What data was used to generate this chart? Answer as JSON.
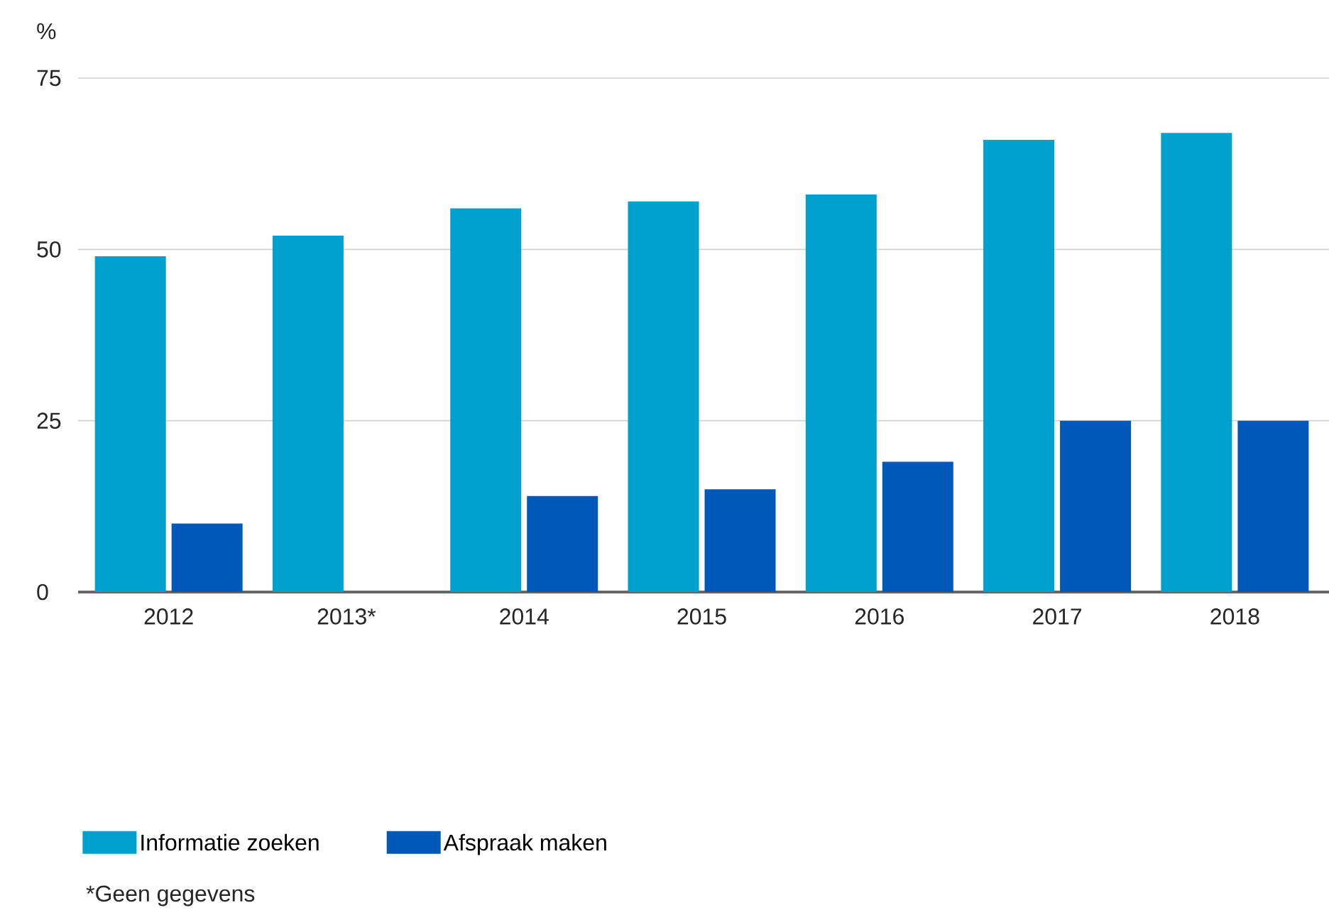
{
  "chart_data": {
    "type": "bar",
    "ylabel": "%",
    "categories": [
      "2012",
      "2013*",
      "2014",
      "2015",
      "2016",
      "2017",
      "2018"
    ],
    "series": [
      {
        "name": "Informatie zoeken",
        "color": "#00a1cd",
        "values": [
          49,
          52,
          56,
          57,
          58,
          66,
          67
        ]
      },
      {
        "name": "Afspraak maken",
        "color": "#0058b8",
        "values": [
          10,
          null,
          14,
          15,
          19,
          25,
          25
        ]
      }
    ],
    "ylim": [
      0,
      75
    ],
    "yticks": [
      0,
      25,
      50,
      75
    ],
    "grid": "y",
    "legend": "bottom left",
    "annotations": [
      "*Geen gegevens"
    ]
  }
}
